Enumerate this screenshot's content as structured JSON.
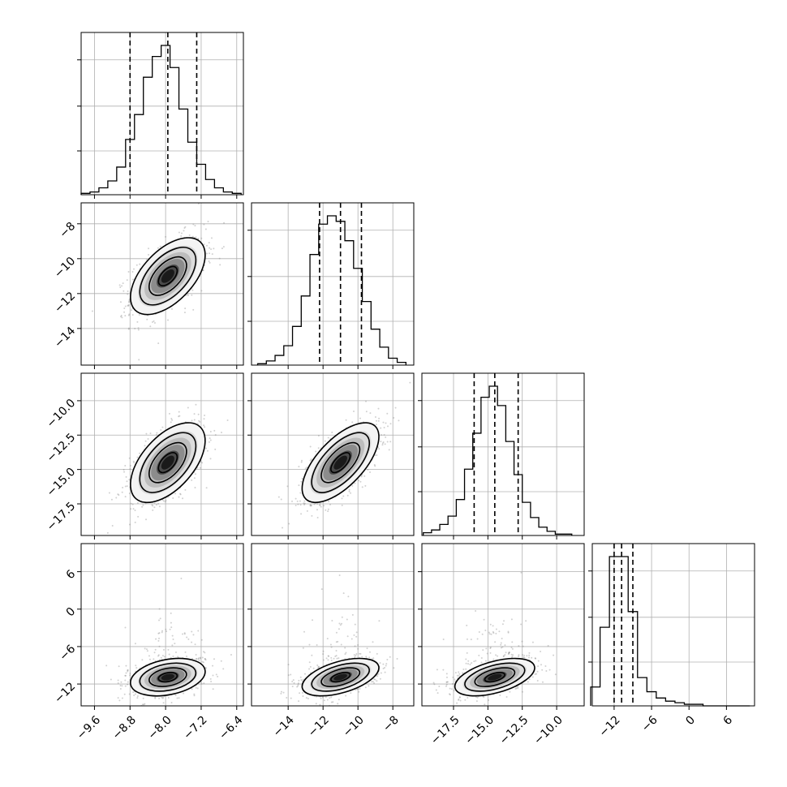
{
  "chart_data": {
    "type": "corner",
    "title": "",
    "n_params": 4,
    "params": [
      {
        "range": [
          -9.9,
          -6.25
        ],
        "ticks": [
          -9.6,
          -8.8,
          -8.0,
          -7.2,
          -6.4
        ],
        "tick_labels": [
          "−9.6",
          "−8.8",
          "−8.0",
          "−7.2",
          "−6.4"
        ],
        "quantiles": [
          -8.8,
          -7.95,
          -7.3
        ],
        "hist_bins": {
          "x": [
            -9.8,
            -9.6,
            -9.4,
            -9.2,
            -9.0,
            -8.8,
            -8.6,
            -8.4,
            -8.2,
            -8.0,
            -7.8,
            -7.6,
            -7.4,
            -7.2,
            -7.0,
            -6.8,
            -6.6,
            -6.4
          ],
          "counts": [
            1,
            2,
            5,
            10,
            20,
            40,
            58,
            85,
            100,
            108,
            92,
            62,
            38,
            22,
            11,
            5,
            2,
            1
          ]
        }
      },
      {
        "range": [
          -16.1,
          -6.8
        ],
        "ticks": [
          -14,
          -12,
          -10,
          -8
        ],
        "tick_labels": [
          "−14",
          "−12",
          "−10",
          "−8"
        ],
        "quantiles": [
          -12.2,
          -11.0,
          -9.8
        ],
        "hist_bins": {
          "x": [
            -15.5,
            -15.0,
            -14.5,
            -14.0,
            -13.5,
            -13.0,
            -12.5,
            -12.0,
            -11.5,
            -11.0,
            -10.5,
            -10.0,
            -9.5,
            -9.0,
            -8.5,
            -8.0,
            -7.5
          ],
          "counts": [
            1,
            3,
            7,
            14,
            28,
            50,
            80,
            102,
            108,
            104,
            90,
            70,
            46,
            26,
            13,
            5,
            2
          ]
        }
      },
      {
        "range": [
          -19.8,
          -8.0
        ],
        "ticks": [
          -17.5,
          -15.0,
          -12.5,
          -10.0
        ],
        "tick_labels": [
          "−17.5",
          "−15.0",
          "−12.5",
          "−10.0"
        ],
        "quantiles": [
          -16.0,
          -14.5,
          -12.8
        ],
        "hist_bins": {
          "x": [
            -19.4,
            -18.8,
            -18.2,
            -17.6,
            -17.0,
            -16.4,
            -15.8,
            -15.2,
            -14.6,
            -14.0,
            -13.4,
            -12.8,
            -12.2,
            -11.6,
            -11.0,
            -10.4,
            -9.8,
            -9.2
          ],
          "counts": [
            2,
            4,
            8,
            14,
            26,
            48,
            74,
            100,
            108,
            94,
            68,
            44,
            24,
            13,
            6,
            3,
            1,
            1
          ]
        }
      },
      {
        "range": [
          -15.5,
          10.5
        ],
        "ticks": [
          -12,
          -6,
          0,
          6
        ],
        "tick_labels": [
          "−12",
          "−6",
          "0",
          "6"
        ],
        "quantiles": [
          -12.0,
          -10.8,
          -9.0
        ],
        "hist_bins": {
          "x": [
            -15.0,
            -13.5,
            -12.0,
            -10.5,
            -9.0,
            -7.5,
            -6.0,
            -4.5,
            -3.0,
            -1.5,
            0.0,
            1.5,
            3.0,
            4.5,
            6.0,
            7.5,
            9.0
          ],
          "counts": [
            12,
            50,
            95,
            95,
            60,
            18,
            9,
            5,
            3,
            2,
            1,
            1,
            0,
            0,
            0,
            0,
            0
          ]
        }
      }
    ],
    "panels_2d": [
      {
        "row": 1,
        "col": 0,
        "mean": [
          -7.95,
          -11.0
        ],
        "sd": [
          0.42,
          1.1
        ],
        "rho": 0.55
      },
      {
        "row": 2,
        "col": 0,
        "mean": [
          -7.95,
          -14.5
        ],
        "sd": [
          0.42,
          1.45
        ],
        "rho": 0.55
      },
      {
        "row": 2,
        "col": 1,
        "mean": [
          -11.0,
          -14.5
        ],
        "sd": [
          1.1,
          1.45
        ],
        "rho": 0.65
      },
      {
        "row": 3,
        "col": 0,
        "mean": [
          -7.95,
          -10.9
        ],
        "sd": [
          0.42,
          1.5
        ],
        "rho": 0.3
      },
      {
        "row": 3,
        "col": 1,
        "mean": [
          -11.0,
          -10.9
        ],
        "sd": [
          1.1,
          1.5
        ],
        "rho": 0.5
      },
      {
        "row": 3,
        "col": 2,
        "mean": [
          -14.5,
          -10.9
        ],
        "sd": [
          1.45,
          1.5
        ],
        "rho": 0.5
      }
    ],
    "contour_levels": [
      0.5,
      1.0,
      1.5,
      2.0
    ],
    "grid": true,
    "legend": "none"
  }
}
